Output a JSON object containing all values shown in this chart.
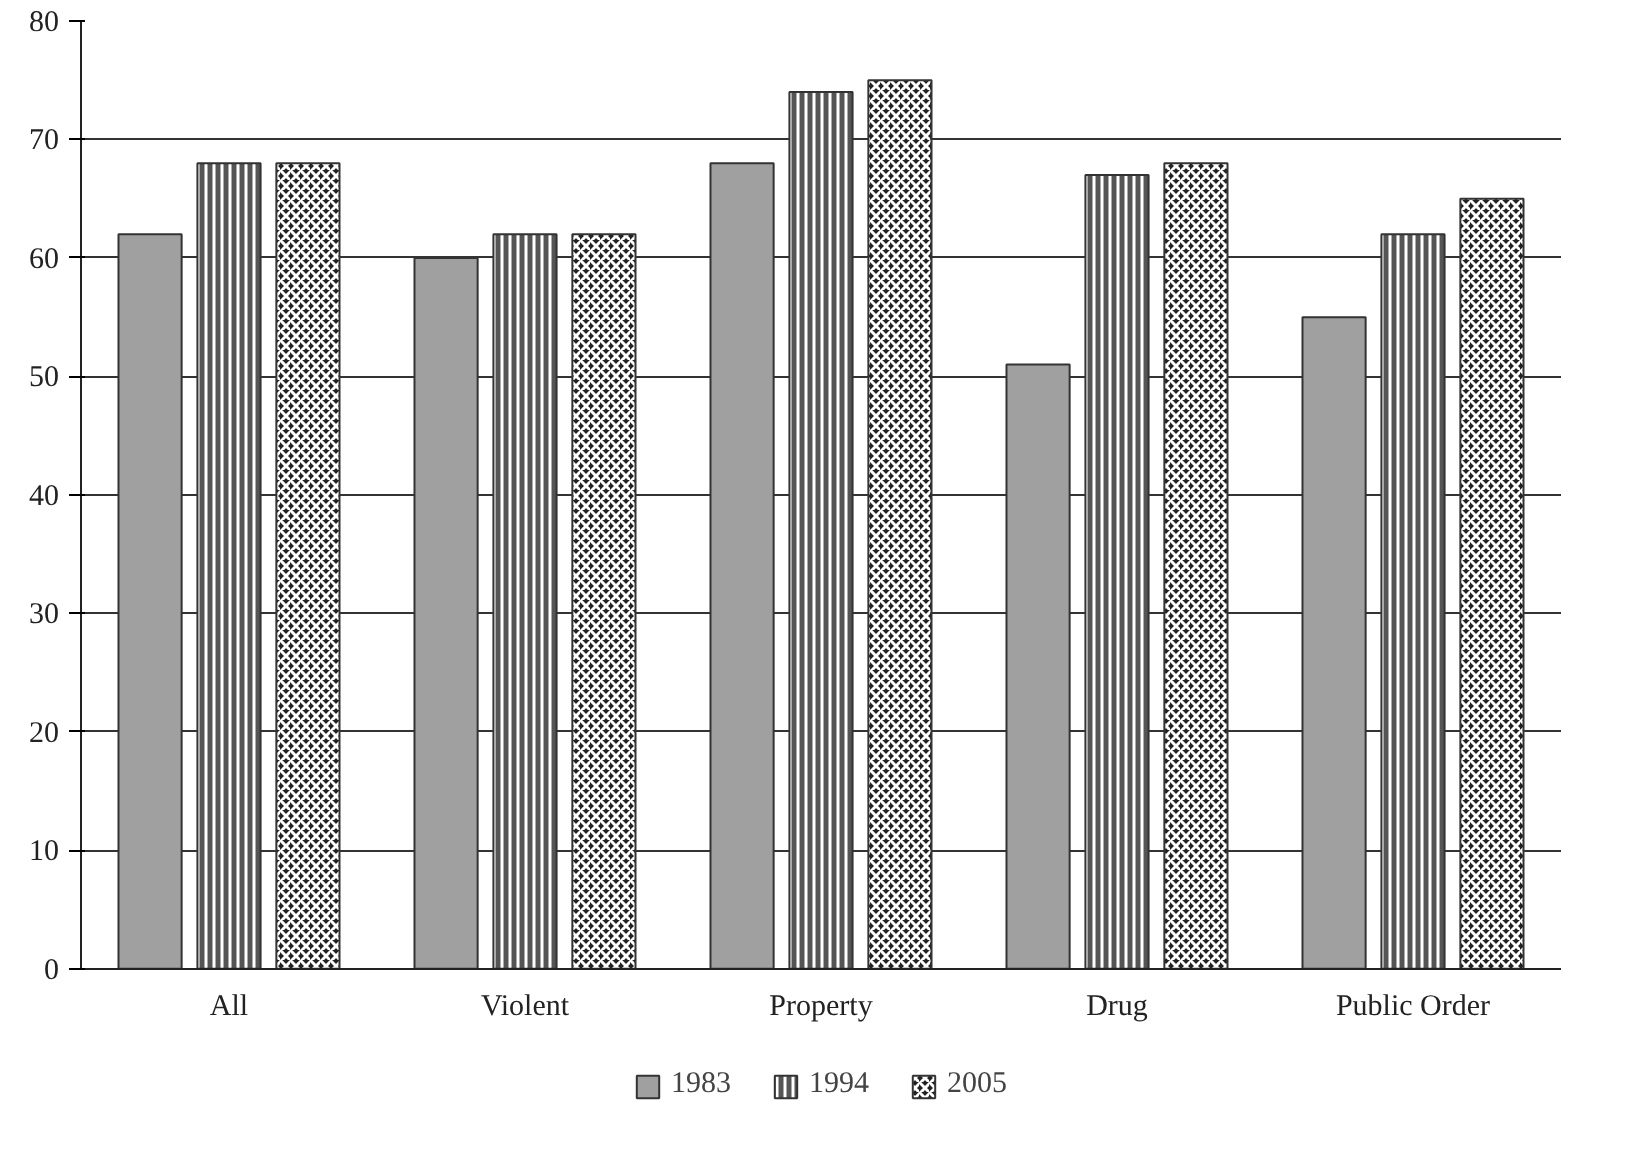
{
  "chart_data": {
    "type": "bar",
    "categories": [
      "All",
      "Violent",
      "Property",
      "Drug",
      "Public Order"
    ],
    "series": [
      {
        "name": "1983",
        "color": "#a0a0a0",
        "values": [
          62,
          60,
          68,
          51,
          55
        ]
      },
      {
        "name": "1994",
        "color": "#555555",
        "values": [
          68,
          62,
          74,
          67,
          62
        ]
      },
      {
        "name": "2005",
        "color": "#222222",
        "values": [
          68,
          62,
          75,
          68,
          65
        ]
      }
    ],
    "ylim": [
      0,
      80
    ],
    "yticks": [
      0,
      10,
      20,
      30,
      40,
      50,
      60,
      70,
      80
    ],
    "grid": "y",
    "legend": "bottom"
  }
}
